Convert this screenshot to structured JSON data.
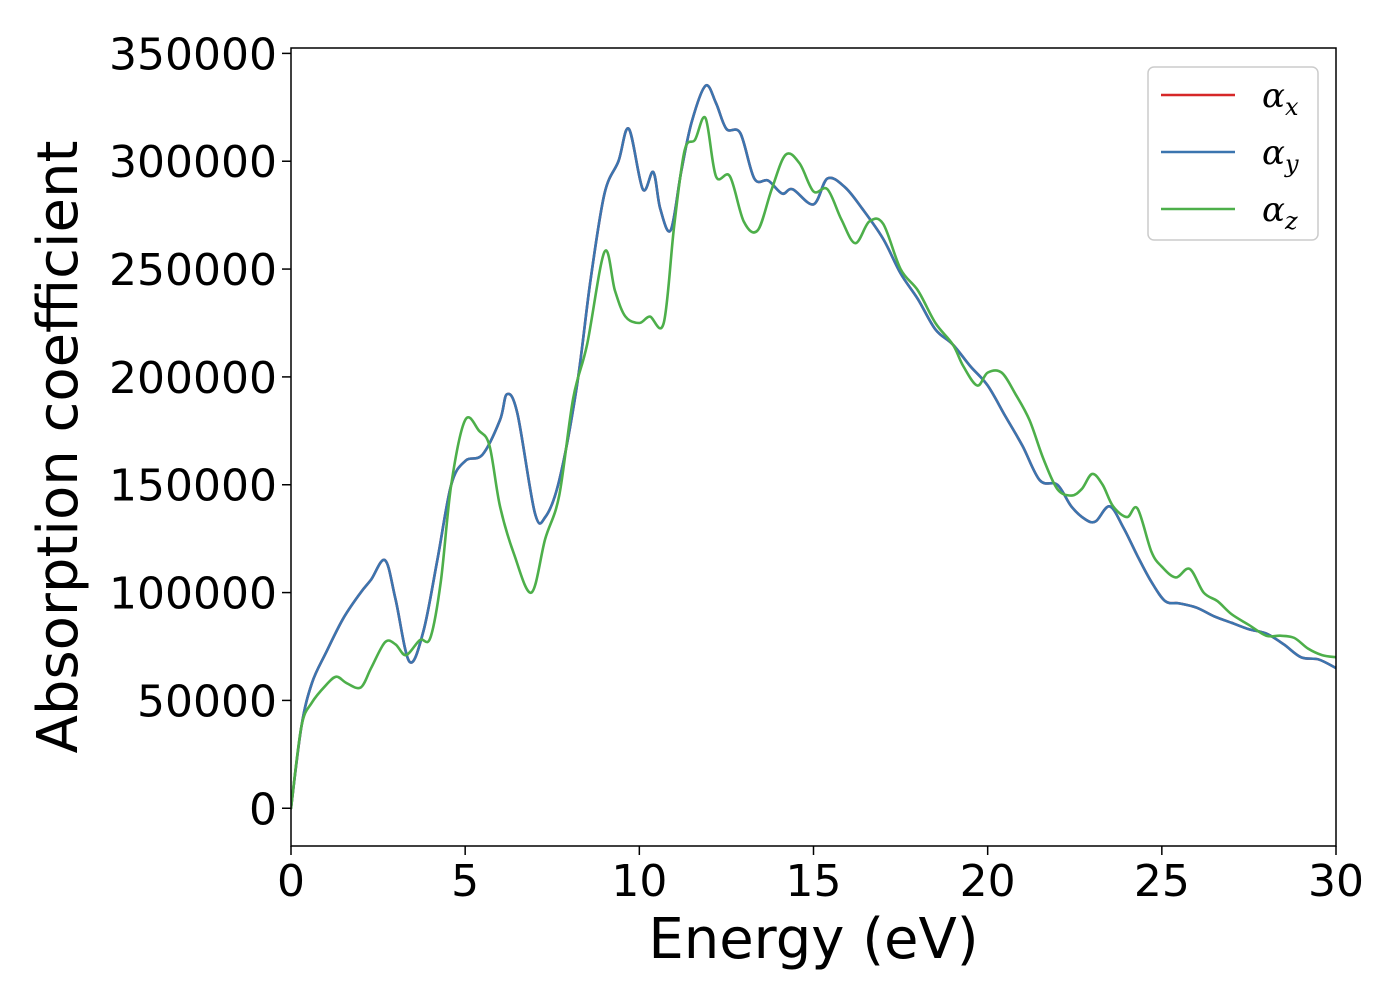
{
  "chart_data": {
    "type": "line",
    "title": "",
    "xlabel": "Energy (eV)",
    "ylabel": "Absorption coefficient",
    "xlim": [
      0,
      30
    ],
    "ylim": [
      -17500,
      352500
    ],
    "xticks": [
      0,
      5,
      10,
      15,
      20,
      25,
      30
    ],
    "xtick_labels": [
      "0",
      "5",
      "10",
      "15",
      "20",
      "25",
      "30"
    ],
    "yticks": [
      0,
      50000,
      100000,
      150000,
      200000,
      250000,
      300000,
      350000
    ],
    "ytick_labels": [
      "0",
      "50000",
      "100000",
      "150000",
      "200000",
      "250000",
      "300000",
      "350000"
    ],
    "grid": false,
    "legend_position": "top-right",
    "series": [
      {
        "name": "α",
        "subscript": "x",
        "color": "#d62728",
        "x": [
          0,
          0.3,
          0.6,
          1.0,
          1.5,
          2.0,
          2.3,
          2.7,
          3.0,
          3.4,
          3.8,
          4.2,
          4.6,
          5.0,
          5.5,
          6.0,
          6.2,
          6.5,
          7.0,
          7.3,
          7.7,
          8.2,
          8.6,
          9.0,
          9.4,
          9.7,
          10.1,
          10.4,
          10.6,
          10.9,
          11.2,
          11.5,
          11.9,
          12.2,
          12.5,
          12.9,
          13.3,
          13.7,
          14.1,
          14.4,
          15.0,
          15.4,
          15.9,
          16.4,
          17.0,
          17.5,
          18.0,
          18.5,
          19.0,
          19.5,
          20.0,
          20.5,
          21.0,
          21.5,
          22.0,
          22.4,
          22.8,
          23.1,
          23.5,
          23.9,
          24.3,
          24.7,
          25.1,
          25.5,
          26.0,
          26.5,
          27.0,
          27.5,
          28.0,
          28.5,
          29.0,
          29.5,
          30.0
        ],
        "values": [
          0,
          38000,
          58000,
          72000,
          88000,
          100000,
          106000,
          115000,
          97000,
          68000,
          82000,
          115000,
          150000,
          161000,
          164000,
          180000,
          192000,
          183000,
          137000,
          135000,
          152000,
          195000,
          245000,
          285000,
          300000,
          315000,
          287000,
          295000,
          278000,
          268000,
          295000,
          318000,
          335000,
          327000,
          315000,
          313000,
          292000,
          291000,
          285000,
          287000,
          280000,
          292000,
          288000,
          278000,
          264000,
          248000,
          236000,
          222000,
          215000,
          205000,
          196000,
          182000,
          168000,
          152000,
          150000,
          140000,
          134000,
          133000,
          140000,
          130000,
          117000,
          105000,
          96000,
          95000,
          93000,
          89000,
          86000,
          83000,
          81000,
          76000,
          70000,
          69000,
          65000
        ]
      },
      {
        "name": "α",
        "subscript": "y",
        "color": "#3b75af",
        "x": [
          0,
          0.3,
          0.6,
          1.0,
          1.5,
          2.0,
          2.3,
          2.7,
          3.0,
          3.4,
          3.8,
          4.2,
          4.6,
          5.0,
          5.5,
          6.0,
          6.2,
          6.5,
          7.0,
          7.3,
          7.7,
          8.2,
          8.6,
          9.0,
          9.4,
          9.7,
          10.1,
          10.4,
          10.6,
          10.9,
          11.2,
          11.5,
          11.9,
          12.2,
          12.5,
          12.9,
          13.3,
          13.7,
          14.1,
          14.4,
          15.0,
          15.4,
          15.9,
          16.4,
          17.0,
          17.5,
          18.0,
          18.5,
          19.0,
          19.5,
          20.0,
          20.5,
          21.0,
          21.5,
          22.0,
          22.4,
          22.8,
          23.1,
          23.5,
          23.9,
          24.3,
          24.7,
          25.1,
          25.5,
          26.0,
          26.5,
          27.0,
          27.5,
          28.0,
          28.5,
          29.0,
          29.5,
          30.0
        ],
        "values": [
          0,
          38000,
          58000,
          72000,
          88000,
          100000,
          106000,
          115000,
          97000,
          68000,
          82000,
          115000,
          150000,
          161000,
          164000,
          180000,
          192000,
          183000,
          137000,
          135000,
          152000,
          195000,
          245000,
          285000,
          300000,
          315000,
          287000,
          295000,
          278000,
          268000,
          295000,
          318000,
          335000,
          327000,
          315000,
          313000,
          292000,
          291000,
          285000,
          287000,
          280000,
          292000,
          288000,
          278000,
          264000,
          248000,
          236000,
          222000,
          215000,
          205000,
          196000,
          182000,
          168000,
          152000,
          150000,
          140000,
          134000,
          133000,
          140000,
          130000,
          117000,
          105000,
          96000,
          95000,
          93000,
          89000,
          86000,
          83000,
          81000,
          76000,
          70000,
          69000,
          65000
        ]
      },
      {
        "name": "α",
        "subscript": "z",
        "color": "#4daf4a",
        "x": [
          0,
          0.3,
          0.6,
          1.0,
          1.3,
          1.6,
          2.0,
          2.3,
          2.7,
          3.0,
          3.3,
          3.7,
          4.0,
          4.3,
          4.6,
          5.0,
          5.4,
          5.7,
          6.0,
          6.4,
          6.9,
          7.3,
          7.7,
          8.1,
          8.5,
          9.0,
          9.3,
          9.6,
          10.0,
          10.3,
          10.7,
          11.0,
          11.3,
          11.6,
          11.9,
          12.2,
          12.6,
          13.0,
          13.4,
          13.8,
          14.2,
          14.6,
          15.0,
          15.4,
          15.8,
          16.2,
          16.6,
          17.0,
          17.5,
          18.0,
          18.5,
          19.0,
          19.3,
          19.7,
          20.0,
          20.4,
          20.8,
          21.2,
          21.6,
          22.0,
          22.4,
          22.7,
          23.0,
          23.3,
          23.6,
          24.0,
          24.3,
          24.7,
          25.0,
          25.4,
          25.8,
          26.2,
          26.6,
          27.0,
          27.5,
          28.0,
          28.4,
          28.8,
          29.2,
          29.6,
          30.0
        ],
        "values": [
          0,
          38000,
          49000,
          57000,
          61000,
          58000,
          56000,
          65000,
          77000,
          76000,
          71000,
          78000,
          79000,
          105000,
          150000,
          180000,
          175000,
          168000,
          140000,
          118000,
          100000,
          125000,
          145000,
          190000,
          215000,
          258000,
          240000,
          228000,
          225000,
          228000,
          225000,
          270000,
          305000,
          310000,
          320000,
          293000,
          293000,
          272000,
          268000,
          287000,
          303000,
          299000,
          286000,
          287000,
          273000,
          262000,
          272000,
          271000,
          250000,
          240000,
          225000,
          215000,
          205000,
          196000,
          202000,
          202000,
          192000,
          180000,
          162000,
          148000,
          145000,
          148000,
          155000,
          150000,
          140000,
          135000,
          139000,
          119000,
          112000,
          107000,
          111000,
          100000,
          96000,
          90000,
          85000,
          80000,
          80000,
          79000,
          74000,
          71000,
          70000
        ]
      }
    ]
  }
}
